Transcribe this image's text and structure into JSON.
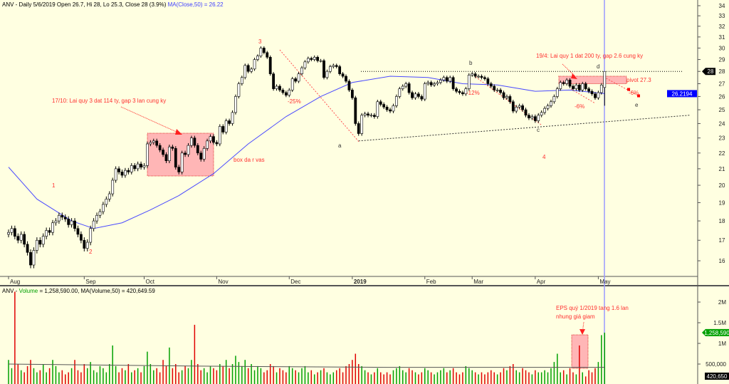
{
  "header": {
    "price": "ANV - Daily 5/6/2019 Open 26.7, Hi 28, Lo 25.3, Close 28 (3.9%)",
    "price_ma": "MA(Close,50) = 26.22",
    "volume_prefix": "ANV - ",
    "volume_name": "Volume",
    "volume_rest": " = 1,258,590.00, MA(Volume,50) = 420,649.59"
  },
  "annotations": {
    "wave1": "1",
    "wave2": "2",
    "wave3": "3",
    "wave4": "4",
    "a": "a",
    "b": "b",
    "c": "c",
    "d": "d",
    "e": "e",
    "pct_25": "-25%",
    "pct_12": "-12%",
    "pct_6a": "-6%",
    "pct_6b": "-6%",
    "pivot": "pivot 27.3",
    "box": "box da r vas",
    "q3": "17/10: Lai quy 3 dat 114 ty, gap 3 lan cung ky",
    "q1": "19/4: Lai quy 1 dat 200 ty, gap 2.6 cung ky",
    "eps1": "EPS quý 1/2019 tang 1.6 lan",
    "eps2": "nhung giá giam"
  },
  "colors": {
    "background": "#ffffe1",
    "ma": "#4a4aff",
    "up_volume": "#00a000",
    "down_volume": "#e00000",
    "annotation": "#ff3030",
    "box": "#ffb6b6"
  },
  "chart_data": [
    {
      "type": "candlestick",
      "scale": "log",
      "ylim": [
        15.3,
        34.5
      ],
      "y_ticks": [
        16,
        17,
        18,
        19,
        20,
        21,
        22,
        23,
        24,
        25,
        26,
        27,
        28,
        29,
        30,
        31,
        32,
        33,
        34
      ],
      "x_ticks": [
        {
          "label": "Aug",
          "bar": 0
        },
        {
          "label": "Sep",
          "bar": 24
        },
        {
          "label": "Oct",
          "bar": 43
        },
        {
          "label": "Nov",
          "bar": 66
        },
        {
          "label": "Dec",
          "bar": 89
        },
        {
          "label": "2019",
          "bar": 109
        },
        {
          "label": "Feb",
          "bar": 132
        },
        {
          "label": "Mar",
          "bar": 147
        },
        {
          "label": "Apr",
          "bar": 167
        },
        {
          "label": "May",
          "bar": 187
        }
      ],
      "last_bar": {
        "open": 26.7,
        "high": 28,
        "low": 25.3,
        "close": 28
      },
      "close": [
        17.4,
        17.6,
        17.2,
        17.0,
        17.3,
        16.8,
        16.4,
        15.8,
        16.5,
        17.0,
        16.8,
        17.2,
        17.5,
        17.4,
        17.9,
        18.0,
        18.3,
        18.2,
        18.1,
        17.8,
        18.0,
        17.6,
        17.3,
        17.0,
        16.6,
        16.9,
        17.6,
        18.0,
        18.3,
        18.5,
        18.9,
        19.2,
        19.5,
        20.3,
        21.0,
        20.8,
        20.6,
        20.9,
        20.8,
        21.2,
        21.0,
        21.3,
        21.1,
        21.2,
        22.6,
        22.7,
        22.8,
        22.5,
        22.2,
        21.9,
        21.5,
        22.4,
        22.3,
        21.1,
        20.8,
        22.0,
        21.9,
        22.5,
        23.0,
        22.5,
        22.0,
        21.6,
        22.3,
        22.8,
        23.1,
        22.7,
        22.6,
        23.8,
        23.4,
        24.2,
        24.0,
        24.8,
        26.0,
        27.0,
        27.5,
        28.5,
        28.0,
        28.2,
        29.0,
        29.3,
        30.0,
        29.6,
        29.2,
        27.8,
        26.6,
        26.8,
        26.5,
        26.3,
        26.1,
        26.5,
        27.4,
        27.2,
        27.8,
        28.3,
        28.8,
        29.1,
        29.0,
        29.2,
        28.9,
        28.9,
        27.5,
        28.0,
        28.4,
        28.5,
        28.4,
        27.8,
        27.6,
        27.2,
        26.5,
        25.9,
        24.0,
        23.3,
        24.6,
        24.7,
        24.6,
        24.6,
        24.5,
        25.6,
        25.4,
        25.2,
        25.0,
        24.9,
        25.3,
        26.0,
        26.6,
        26.8,
        27.0,
        26.3,
        25.9,
        26.2,
        26.0,
        25.8,
        27.0,
        27.1,
        26.9,
        27.0,
        27.1,
        27.3,
        27.5,
        27.2,
        27.5,
        26.6,
        26.4,
        26.3,
        26.2,
        26.6,
        27.7,
        27.8,
        27.6,
        27.6,
        27.5,
        27.4,
        27.0,
        26.8,
        26.5,
        26.5,
        26.3,
        25.9,
        26.0,
        25.6,
        24.9,
        25.2,
        25.3,
        25.0,
        24.6,
        24.4,
        24.5,
        24.2,
        24.6,
        24.8,
        25.1,
        25.3,
        25.6,
        26.0,
        26.6,
        27.1,
        27.0,
        27.3,
        26.8,
        26.6,
        26.9,
        26.5,
        27.0,
        26.6,
        26.4,
        26.2,
        25.9,
        26.3,
        26.9,
        28.0
      ],
      "ma50": [
        [
          0,
          21.1
        ],
        [
          9,
          19.2
        ],
        [
          20,
          18.0
        ],
        [
          27,
          17.6
        ],
        [
          36,
          17.9
        ],
        [
          45,
          18.6
        ],
        [
          54,
          19.4
        ],
        [
          65,
          20.7
        ],
        [
          76,
          22.6
        ],
        [
          88,
          24.5
        ],
        [
          99,
          26.0
        ],
        [
          109,
          27.1
        ],
        [
          121,
          27.6
        ],
        [
          133,
          27.5
        ],
        [
          144,
          27.0
        ],
        [
          155,
          26.9
        ],
        [
          167,
          26.4
        ],
        [
          178,
          26.5
        ],
        [
          189,
          26.22
        ]
      ],
      "ma50_last_label": "26.2194",
      "last_close_label": "28",
      "resistance": 28,
      "pivot": 27.3,
      "support_line": [
        [
          111,
          22.8
        ],
        [
          216,
          24.6
        ]
      ]
    },
    {
      "type": "bar",
      "units": "millions of shares",
      "ylim": [
        0,
        2.4
      ],
      "y_ticks": [
        {
          "v": 0.5,
          "label": "500,000"
        },
        {
          "v": 1,
          "label": "1M"
        },
        {
          "v": 1.5,
          "label": "1.5M"
        },
        {
          "v": 2,
          "label": "2M"
        }
      ],
      "last_volume_label": "1,258,590",
      "last_ma_label": "420,650",
      "volume": [
        0.6,
        0.4,
        2.25,
        0.5,
        0.35,
        0.3,
        0.45,
        0.6,
        0.4,
        0.3,
        0.35,
        0.5,
        0.3,
        0.4,
        0.6,
        0.45,
        0.3,
        0.35,
        0.25,
        0.3,
        0.4,
        0.6,
        0.35,
        0.3,
        0.5,
        0.4,
        0.55,
        0.35,
        0.3,
        0.45,
        0.4,
        0.3,
        0.5,
        0.95,
        0.45,
        0.3,
        0.4,
        0.35,
        0.5,
        0.3,
        0.35,
        0.4,
        0.3,
        0.45,
        0.8,
        0.5,
        0.35,
        0.4,
        0.3,
        0.6,
        0.45,
        0.9,
        0.4,
        0.5,
        0.3,
        0.35,
        0.45,
        0.4,
        0.6,
        1.45,
        0.5,
        0.35,
        0.4,
        0.3,
        0.45,
        0.4,
        0.35,
        0.5,
        0.45,
        0.6,
        0.4,
        0.5,
        0.7,
        0.55,
        0.45,
        0.6,
        0.4,
        0.5,
        0.35,
        0.45,
        0.4,
        0.3,
        0.35,
        0.5,
        0.45,
        0.3,
        0.4,
        0.35,
        0.3,
        0.45,
        0.4,
        0.35,
        0.3,
        0.4,
        0.45,
        0.3,
        0.35,
        0.25,
        0.3,
        0.35,
        0.4,
        0.3,
        0.25,
        0.3,
        0.35,
        0.4,
        0.3,
        0.45,
        0.5,
        0.6,
        0.75,
        0.5,
        0.45,
        0.35,
        0.3,
        0.25,
        0.3,
        0.4,
        0.3,
        0.25,
        0.3,
        0.25,
        0.35,
        0.4,
        0.45,
        0.35,
        0.3,
        0.4,
        0.35,
        0.3,
        0.25,
        0.3,
        0.4,
        0.35,
        0.3,
        0.25,
        0.3,
        0.35,
        0.4,
        0.3,
        0.35,
        0.4,
        0.3,
        0.25,
        0.3,
        0.45,
        0.4,
        0.35,
        0.3,
        0.25,
        0.3,
        0.25,
        0.3,
        0.35,
        0.3,
        0.25,
        0.3,
        0.4,
        0.35,
        0.45,
        0.5,
        0.35,
        0.3,
        0.4,
        0.35,
        0.3,
        0.25,
        0.35,
        0.3,
        0.3,
        0.35,
        0.3,
        0.4,
        0.55,
        0.75,
        0.3,
        0.35,
        0.25,
        0.4,
        0.3,
        0.25,
        0.95,
        0.3,
        0.2,
        0.35,
        0.3,
        0.4,
        0.55,
        1.2,
        1.26
      ],
      "ma50": [
        [
          0,
          0.5
        ],
        [
          60,
          0.45
        ],
        [
          120,
          0.42
        ],
        [
          189,
          0.42
        ]
      ]
    }
  ]
}
